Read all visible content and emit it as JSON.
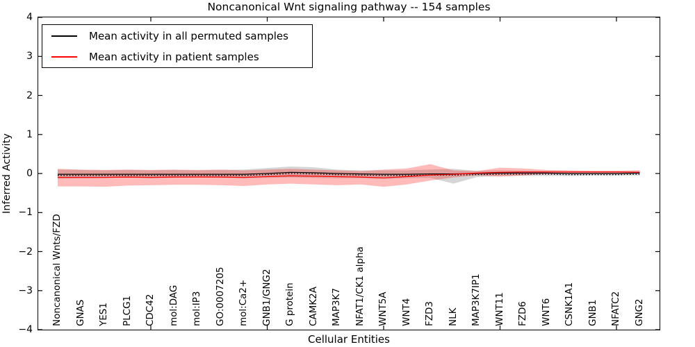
{
  "title": "Noncanonical Wnt signaling pathway -- 154 samples",
  "axes": {
    "xlabel": "Cellular Entities",
    "ylabel": "Inferred Activity",
    "ylim": [
      -4,
      4
    ],
    "yticks": [
      {
        "value": 4,
        "label": "4"
      },
      {
        "value": 3,
        "label": "3"
      },
      {
        "value": 2,
        "label": "2"
      },
      {
        "value": 1,
        "label": "1"
      },
      {
        "value": 0,
        "label": "0"
      },
      {
        "value": -1,
        "label": "−1"
      },
      {
        "value": -2,
        "label": "−2"
      },
      {
        "value": -3,
        "label": "−3"
      },
      {
        "value": -4,
        "label": "−4"
      }
    ],
    "xticks": [
      5,
      10,
      15,
      20,
      25
    ]
  },
  "legend": {
    "items": [
      {
        "label": "Mean activity in all permuted samples",
        "color": "#000000"
      },
      {
        "label": "Mean activity in patient samples",
        "color": "#ff0000"
      }
    ]
  },
  "chart_data": {
    "type": "line",
    "title": "Noncanonical Wnt signaling pathway -- 154 samples",
    "xlabel": "Cellular Entities",
    "ylabel": "Inferred Activity",
    "ylim": [
      -4,
      4
    ],
    "grid": false,
    "legend_position": "upper left",
    "categories": [
      "Noncanonical Wnts/FZD",
      "GNAS",
      "YES1",
      "PLCG1",
      "CDC42",
      "mol:DAG",
      "mol:IP3",
      "GO:0007205",
      "mol:Ca2+",
      "GNB1/GNG2",
      "G protein",
      "CAMK2A",
      "MAP3K7",
      "NFAT1/CK1 alpha",
      "WNT5A",
      "WNT4",
      "FZD3",
      "NLK",
      "MAP3K7IP1",
      "WNT11",
      "FZD6",
      "WNT6",
      "CSNK1A1",
      "GNB1",
      "NFATC2",
      "GNG2"
    ],
    "x": [
      1,
      2,
      3,
      4,
      5,
      6,
      7,
      8,
      9,
      10,
      11,
      12,
      13,
      14,
      15,
      16,
      17,
      18,
      19,
      20,
      21,
      22,
      23,
      24,
      25,
      26
    ],
    "series": [
      {
        "name": "Permuted samples band",
        "type": "band",
        "color": "#000000",
        "opacity": 0.16,
        "upper": [
          0.1,
          0.09,
          0.08,
          0.09,
          0.08,
          0.09,
          0.08,
          0.09,
          0.1,
          0.14,
          0.18,
          0.16,
          0.1,
          0.08,
          0.08,
          0.08,
          0.1,
          0.12,
          0.07,
          0.08,
          0.07,
          0.07,
          0.06,
          0.06,
          0.06,
          0.07
        ],
        "lower": [
          -0.13,
          -0.12,
          -0.11,
          -0.11,
          -0.12,
          -0.11,
          -0.1,
          -0.11,
          -0.12,
          -0.11,
          -0.1,
          -0.11,
          -0.12,
          -0.12,
          -0.14,
          -0.12,
          -0.11,
          -0.26,
          -0.09,
          -0.06,
          -0.06,
          -0.06,
          -0.06,
          -0.05,
          -0.05,
          -0.05
        ]
      },
      {
        "name": "Patient samples band",
        "type": "band",
        "color": "#ff0000",
        "opacity": 0.27,
        "upper": [
          0.12,
          0.1,
          0.09,
          0.1,
          0.09,
          0.1,
          0.09,
          0.1,
          0.08,
          0.1,
          0.12,
          0.1,
          0.08,
          0.06,
          0.1,
          0.13,
          0.24,
          0.08,
          0.06,
          0.15,
          0.13,
          0.09,
          0.08,
          0.07,
          0.07,
          0.08
        ],
        "lower": [
          -0.33,
          -0.33,
          -0.34,
          -0.31,
          -0.3,
          -0.29,
          -0.29,
          -0.3,
          -0.32,
          -0.28,
          -0.26,
          -0.28,
          -0.3,
          -0.28,
          -0.34,
          -0.28,
          -0.18,
          -0.1,
          -0.05,
          -0.08,
          -0.05,
          -0.01,
          0.0,
          0.0,
          0.0,
          0.0
        ]
      },
      {
        "name": "Mean activity in all permuted samples",
        "type": "line",
        "color": "#000000",
        "values": [
          -0.02,
          -0.02,
          -0.02,
          -0.02,
          -0.02,
          -0.02,
          -0.02,
          -0.02,
          -0.02,
          0.0,
          0.03,
          0.02,
          0.0,
          -0.01,
          -0.02,
          -0.02,
          -0.01,
          -0.01,
          0.0,
          0.01,
          0.01,
          0.01,
          0.0,
          0.0,
          0.0,
          0.01
        ]
      },
      {
        "name": "Mean activity in patient samples",
        "type": "line",
        "color": "#ff0000",
        "values": [
          -0.1,
          -0.1,
          -0.1,
          -0.09,
          -0.1,
          -0.09,
          -0.09,
          -0.09,
          -0.1,
          -0.08,
          -0.06,
          -0.07,
          -0.08,
          -0.09,
          -0.11,
          -0.08,
          -0.04,
          -0.02,
          0.01,
          0.03,
          0.04,
          0.04,
          0.04,
          0.04,
          0.04,
          0.03
        ]
      }
    ]
  }
}
